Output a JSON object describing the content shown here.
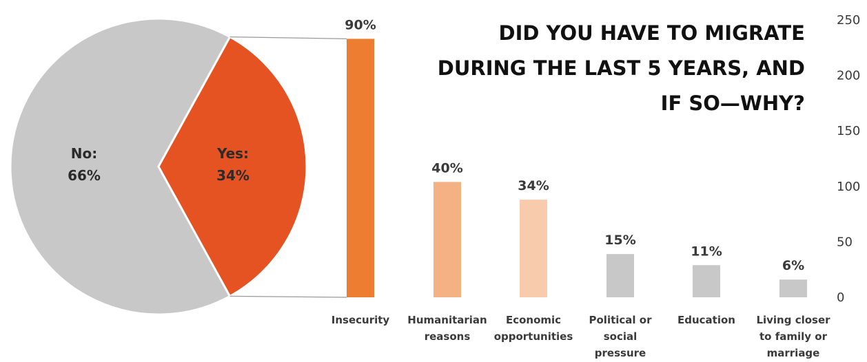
{
  "title_lines": [
    "DID YOU HAVE TO MIGRATE",
    "DURING THE LAST 5 YEARS, AND",
    "IF SO—WHY?"
  ],
  "chart_data": [
    {
      "type": "pie",
      "slices": [
        {
          "label_lines": [
            "No:",
            "66%"
          ],
          "value": 66,
          "color": "#c8c8c8"
        },
        {
          "label_lines": [
            "Yes:",
            "34%"
          ],
          "value": 34,
          "color": "#e55323"
        }
      ]
    },
    {
      "type": "bar",
      "categories": [
        [
          "Insecurity"
        ],
        [
          "Humanitarian",
          "reasons"
        ],
        [
          "Economic",
          "opportunities"
        ],
        [
          "Political or",
          "social",
          "pressure"
        ],
        [
          "Education"
        ],
        [
          "Living closer",
          "to family or",
          "marriage"
        ]
      ],
      "values": [
        233,
        104,
        88,
        39,
        29,
        16
      ],
      "value_labels": [
        "90%",
        "40%",
        "34%",
        "15%",
        "11%",
        "6%"
      ],
      "colors": [
        "#ed7d31",
        "#f4b183",
        "#f8cbad",
        "#c8c8c8",
        "#c8c8c8",
        "#c8c8c8"
      ],
      "yticks": [
        0,
        50,
        100,
        150,
        200,
        250
      ],
      "ylim": [
        0,
        250
      ],
      "grid": false,
      "axis_position": "right"
    }
  ]
}
